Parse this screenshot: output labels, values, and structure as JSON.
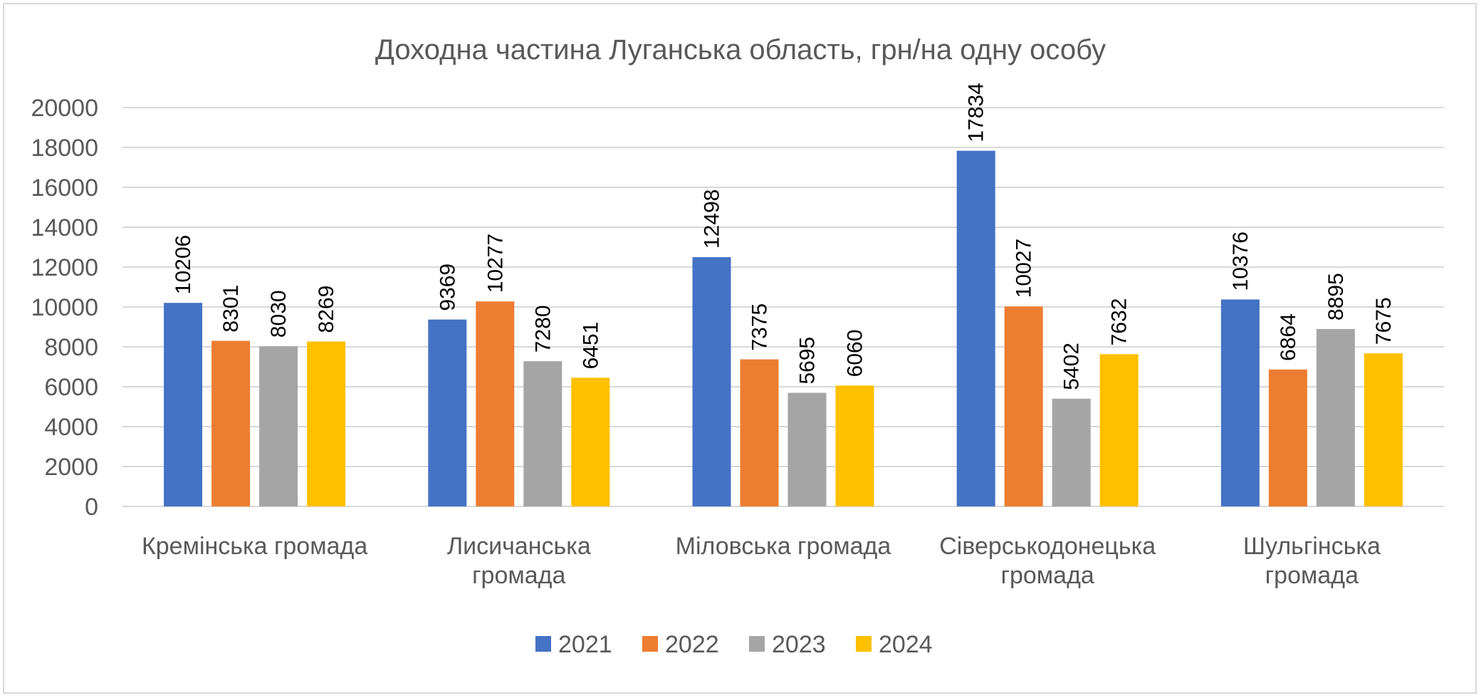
{
  "chart_data": {
    "type": "bar",
    "title": "Доходна частина Луганська область, грн/на одну особу",
    "categories": [
      [
        "Кремінська громада"
      ],
      [
        "Лисичанська",
        "громада"
      ],
      [
        "Міловська громада"
      ],
      [
        "Сіверськодонецька",
        "громада"
      ],
      [
        "Шульгінська",
        "громада"
      ]
    ],
    "series": [
      {
        "name": "2021",
        "color": "#4472C4",
        "values": [
          10206,
          9369,
          12498,
          17834,
          10376
        ]
      },
      {
        "name": "2022",
        "color": "#ED7D31",
        "values": [
          8301,
          10277,
          7375,
          10027,
          6864
        ]
      },
      {
        "name": "2023",
        "color": "#A5A5A5",
        "values": [
          8030,
          7280,
          5695,
          5402,
          8895
        ]
      },
      {
        "name": "2024",
        "color": "#FFC000",
        "values": [
          8269,
          6451,
          6060,
          7632,
          7675
        ]
      }
    ],
    "ylim": [
      0,
      20000
    ],
    "yticks": [
      0,
      2000,
      4000,
      6000,
      8000,
      10000,
      12000,
      14000,
      16000,
      18000,
      20000
    ],
    "grid": true,
    "legend_position": "bottom",
    "data_labels": "rotated-vertical"
  }
}
